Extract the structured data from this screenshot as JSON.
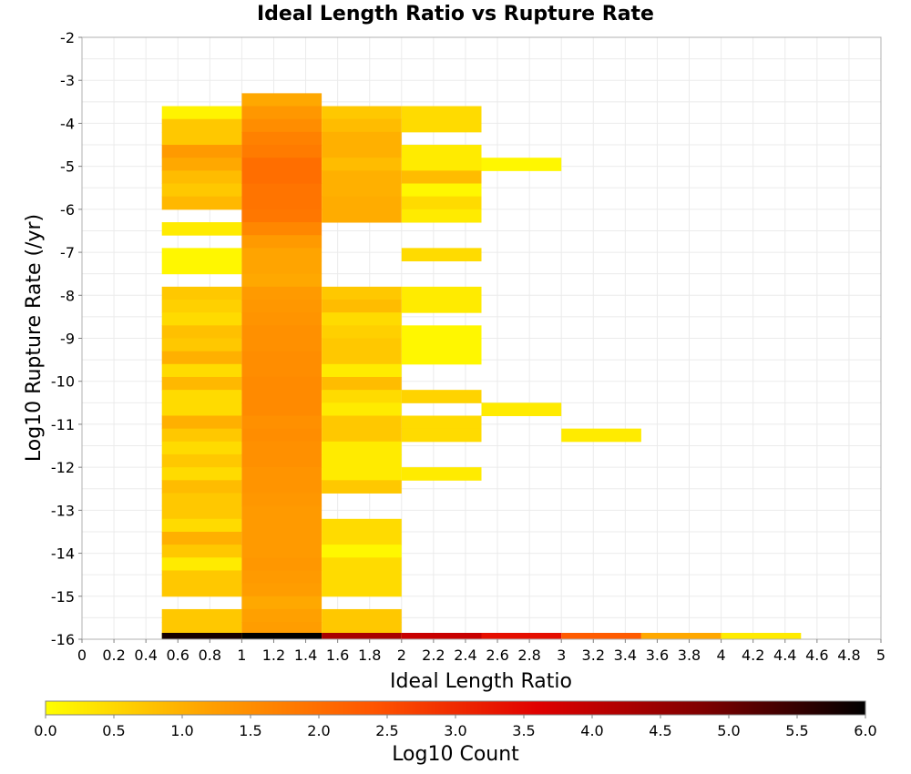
{
  "chart_data": {
    "type": "heatmap",
    "title": "Ideal Length Ratio vs Rupture Rate",
    "xlabel": "Ideal Length Ratio",
    "ylabel": "Log10 Rupture Rate (/yr)",
    "xlim": [
      0,
      5
    ],
    "ylim": [
      -16,
      -2
    ],
    "grid": true,
    "x_ticks": [
      "0",
      "0.2",
      "0.4",
      "0.6",
      "0.8",
      "1",
      "1.2",
      "1.4",
      "1.6",
      "1.8",
      "2",
      "2.2",
      "2.4",
      "2.6",
      "2.8",
      "3",
      "3.2",
      "3.4",
      "3.6",
      "3.8",
      "4",
      "4.2",
      "4.4",
      "4.6",
      "4.8",
      "5"
    ],
    "y_ticks": [
      "-2",
      "-3",
      "-4",
      "-5",
      "-6",
      "-7",
      "-8",
      "-9",
      "-10",
      "-11",
      "-12",
      "-13",
      "-14",
      "-15",
      "-16"
    ],
    "colorbar": {
      "label": "Log10 Count",
      "range": [
        0,
        6
      ],
      "ticks": [
        "0.0",
        "0.5",
        "1.0",
        "1.5",
        "2.0",
        "2.5",
        "3.0",
        "3.5",
        "4.0",
        "4.5",
        "5.0",
        "5.5",
        "6.0"
      ],
      "colors": [
        "#ffff00",
        "#ffa000",
        "#ff5500",
        "#e00000",
        "#800000",
        "#000000"
      ]
    },
    "bin_width": 0.5,
    "bin_height": 0.3,
    "columns": [
      {
        "x0": 0.5,
        "cells": [
          [
            -3.6,
            0.15
          ],
          [
            -3.9,
            0.7
          ],
          [
            -4.2,
            0.7
          ],
          [
            -4.5,
            1.3
          ],
          [
            -4.8,
            1.1
          ],
          [
            -5.1,
            0.85
          ],
          [
            -5.4,
            0.7
          ],
          [
            -5.7,
            0.9
          ],
          [
            -6.3,
            0.25
          ],
          [
            -6.9,
            0.1
          ],
          [
            -7.2,
            0.1
          ],
          [
            -7.8,
            0.7
          ],
          [
            -8.1,
            0.6
          ],
          [
            -8.4,
            0.45
          ],
          [
            -8.7,
            0.8
          ],
          [
            -9.0,
            0.7
          ],
          [
            -9.3,
            1.0
          ],
          [
            -9.6,
            0.45
          ],
          [
            -9.9,
            0.9
          ],
          [
            -10.2,
            0.45
          ],
          [
            -10.5,
            0.45
          ],
          [
            -10.8,
            1.0
          ],
          [
            -11.1,
            0.7
          ],
          [
            -11.4,
            0.45
          ],
          [
            -11.7,
            0.7
          ],
          [
            -12.0,
            0.45
          ],
          [
            -12.3,
            0.85
          ],
          [
            -12.6,
            0.7
          ],
          [
            -12.9,
            0.7
          ],
          [
            -13.2,
            0.45
          ],
          [
            -13.5,
            1.0
          ],
          [
            -13.8,
            0.7
          ],
          [
            -14.1,
            0.25
          ],
          [
            -14.4,
            0.7
          ],
          [
            -14.7,
            0.7
          ],
          [
            -15.3,
            0.7
          ],
          [
            -15.6,
            0.7
          ],
          [
            -15.9,
            0.25
          ],
          [
            -16.0,
            5.8
          ]
        ]
      },
      {
        "x0": 1.0,
        "cells": [
          [
            -3.3,
            1.1
          ],
          [
            -3.6,
            1.35
          ],
          [
            -3.9,
            1.5
          ],
          [
            -4.2,
            1.7
          ],
          [
            -4.5,
            1.8
          ],
          [
            -4.8,
            2.0
          ],
          [
            -5.1,
            2.0
          ],
          [
            -5.4,
            1.9
          ],
          [
            -5.7,
            1.9
          ],
          [
            -6.0,
            1.85
          ],
          [
            -6.3,
            1.6
          ],
          [
            -6.6,
            1.3
          ],
          [
            -6.9,
            1.15
          ],
          [
            -7.2,
            1.15
          ],
          [
            -7.5,
            1.1
          ],
          [
            -7.8,
            1.3
          ],
          [
            -8.1,
            1.35
          ],
          [
            -8.4,
            1.4
          ],
          [
            -8.7,
            1.45
          ],
          [
            -9.0,
            1.45
          ],
          [
            -9.3,
            1.5
          ],
          [
            -9.6,
            1.5
          ],
          [
            -9.9,
            1.55
          ],
          [
            -10.2,
            1.55
          ],
          [
            -10.5,
            1.55
          ],
          [
            -10.8,
            1.45
          ],
          [
            -11.1,
            1.5
          ],
          [
            -11.4,
            1.45
          ],
          [
            -11.7,
            1.45
          ],
          [
            -12.0,
            1.4
          ],
          [
            -12.3,
            1.4
          ],
          [
            -12.6,
            1.35
          ],
          [
            -12.9,
            1.3
          ],
          [
            -13.2,
            1.3
          ],
          [
            -13.5,
            1.3
          ],
          [
            -13.8,
            1.3
          ],
          [
            -14.1,
            1.35
          ],
          [
            -14.4,
            1.3
          ],
          [
            -14.7,
            1.25
          ],
          [
            -15.0,
            1.1
          ],
          [
            -15.3,
            1.2
          ],
          [
            -15.6,
            1.25
          ],
          [
            -15.9,
            1.1
          ],
          [
            -16.0,
            6.0
          ]
        ]
      },
      {
        "x0": 1.5,
        "cells": [
          [
            -3.6,
            0.7
          ],
          [
            -3.9,
            0.85
          ],
          [
            -4.2,
            1.0
          ],
          [
            -4.5,
            1.0
          ],
          [
            -4.8,
            0.85
          ],
          [
            -5.1,
            1.0
          ],
          [
            -5.4,
            1.0
          ],
          [
            -5.7,
            1.05
          ],
          [
            -6.0,
            1.05
          ],
          [
            -7.8,
            0.7
          ],
          [
            -8.1,
            0.85
          ],
          [
            -8.4,
            0.45
          ],
          [
            -8.7,
            0.6
          ],
          [
            -9.0,
            0.7
          ],
          [
            -9.3,
            0.7
          ],
          [
            -9.6,
            0.25
          ],
          [
            -9.9,
            0.85
          ],
          [
            -10.2,
            0.45
          ],
          [
            -10.5,
            0.25
          ],
          [
            -10.8,
            0.7
          ],
          [
            -11.1,
            0.7
          ],
          [
            -11.4,
            0.25
          ],
          [
            -11.7,
            0.25
          ],
          [
            -12.0,
            0.25
          ],
          [
            -12.3,
            0.7
          ],
          [
            -13.2,
            0.45
          ],
          [
            -13.5,
            0.45
          ],
          [
            -13.8,
            0.1
          ],
          [
            -14.1,
            0.45
          ],
          [
            -14.4,
            0.45
          ],
          [
            -14.7,
            0.45
          ],
          [
            -15.3,
            0.7
          ],
          [
            -15.6,
            0.7
          ],
          [
            -16.0,
            4.3
          ]
        ]
      },
      {
        "x0": 2.0,
        "cells": [
          [
            -3.6,
            0.45
          ],
          [
            -3.9,
            0.45
          ],
          [
            -4.5,
            0.25
          ],
          [
            -4.8,
            0.25
          ],
          [
            -5.1,
            0.85
          ],
          [
            -5.4,
            0.1
          ],
          [
            -5.7,
            0.45
          ],
          [
            -6.0,
            0.25
          ],
          [
            -6.9,
            0.45
          ],
          [
            -7.8,
            0.25
          ],
          [
            -8.1,
            0.25
          ],
          [
            -8.7,
            0.1
          ],
          [
            -9.0,
            0.1
          ],
          [
            -9.3,
            0.1
          ],
          [
            -10.2,
            0.55
          ],
          [
            -10.8,
            0.45
          ],
          [
            -11.1,
            0.45
          ],
          [
            -12.0,
            0.25
          ],
          [
            -15.9,
            0.45
          ],
          [
            -16.0,
            3.9
          ]
        ]
      },
      {
        "x0": 2.5,
        "cells": [
          [
            -4.8,
            0.1
          ],
          [
            -10.5,
            0.25
          ],
          [
            -16.0,
            3.4
          ]
        ]
      },
      {
        "x0": 3.0,
        "cells": [
          [
            -11.1,
            0.25
          ],
          [
            -16.0,
            2.3
          ]
        ]
      },
      {
        "x0": 3.5,
        "cells": [
          [
            -16.0,
            1.1
          ]
        ]
      },
      {
        "x0": 4.0,
        "cells": [
          [
            -16.0,
            0.25
          ]
        ]
      }
    ]
  }
}
